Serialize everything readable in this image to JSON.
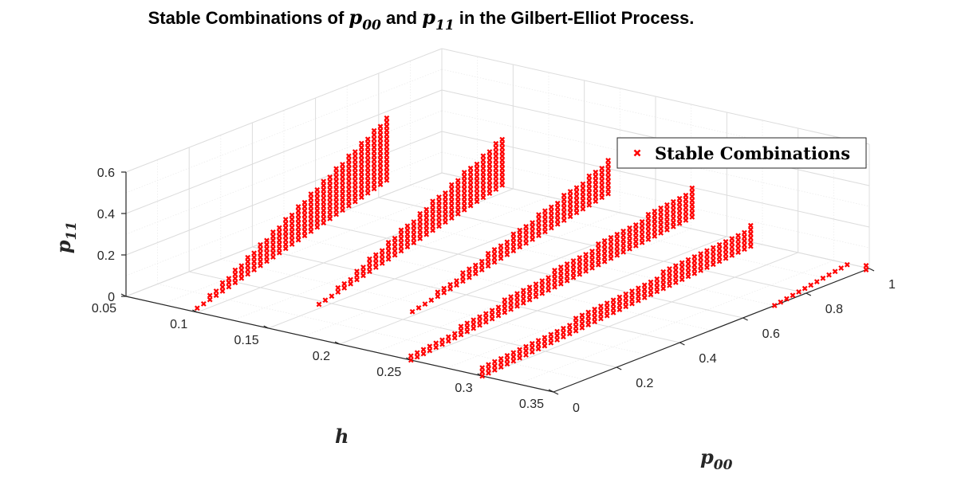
{
  "chart_data": {
    "type": "scatter3d",
    "title": {
      "prefix": "Stable Combinations of ",
      "var1": "p",
      "var1_sub": "00",
      "middle": " and ",
      "var2": "p",
      "var2_sub": "11",
      "suffix": " in the Gilbert-Elliot Process."
    },
    "axes": {
      "x": {
        "label": "h",
        "sub": "",
        "range": [
          0.05,
          0.35
        ],
        "ticks": [
          0.05,
          0.1,
          0.15,
          0.2,
          0.25,
          0.3,
          0.35
        ],
        "tick_labels": [
          "0.05",
          "0.1",
          "0.15",
          "0.2",
          "0.25",
          "0.3",
          "0.35"
        ]
      },
      "y": {
        "label": "p",
        "sub": "00",
        "range": [
          0,
          1
        ],
        "ticks": [
          0,
          0.2,
          0.4,
          0.6,
          0.8,
          1
        ],
        "tick_labels": [
          "0",
          "0.2",
          "0.4",
          "0.6",
          "0.8",
          "1"
        ]
      },
      "z": {
        "label": "p",
        "sub": "11",
        "range": [
          0,
          0.6
        ],
        "ticks": [
          0,
          0.2,
          0.4,
          0.6
        ],
        "tick_labels": [
          "0",
          "0.2",
          "0.4",
          "0.6"
        ]
      }
    },
    "grid": true,
    "legend": {
      "entry": "Stable Combinations",
      "placement": "right"
    },
    "marker": {
      "symbol": "x",
      "color": "#ff0000"
    },
    "series": [
      {
        "name": "Stable Combinations",
        "slices": [
          {
            "h": 0.1,
            "p00_start": 0.0,
            "p00_end": 0.6,
            "p11_min_start": 0.02,
            "p11_min_end": 0.28,
            "p11_max_start": 0.02,
            "p11_max_end": 0.58
          },
          {
            "h": 0.15,
            "p00_start": 0.16,
            "p00_end": 0.74,
            "p11_min_start": 0.02,
            "p11_min_end": 0.25,
            "p11_max_start": 0.02,
            "p11_max_end": 0.48
          },
          {
            "h": 0.2,
            "p00_start": 0.23,
            "p00_end": 0.85,
            "p11_min_start": 0.02,
            "p11_min_end": 0.22,
            "p11_max_start": 0.02,
            "p11_max_end": 0.38
          },
          {
            "h": 0.25,
            "p00_start": 0.0,
            "p00_end": 0.89,
            "p11_min_start": 0.0,
            "p11_min_end": 0.16,
            "p11_max_start": 0.02,
            "p11_max_end": 0.3
          },
          {
            "h": 0.3,
            "p00_start": 0.0,
            "p00_end": 0.85,
            "p11_min_start": 0.0,
            "p11_min_end": 0.12,
            "p11_max_start": 0.04,
            "p11_max_end": 0.22
          },
          {
            "h": 0.35,
            "p00_start": 0.7,
            "p00_end": 0.93,
            "p11_min_start": 0.0,
            "p11_min_end": 0.06,
            "p11_max_start": 0.0,
            "p11_max_end": 0.06
          },
          {
            "h": 0.35,
            "p00_start": 0.99,
            "p00_end": 0.99,
            "p11_min_start": 0.0,
            "p11_min_end": 0.0,
            "p11_max_start": 0.02,
            "p11_max_end": 0.02
          }
        ]
      }
    ]
  }
}
